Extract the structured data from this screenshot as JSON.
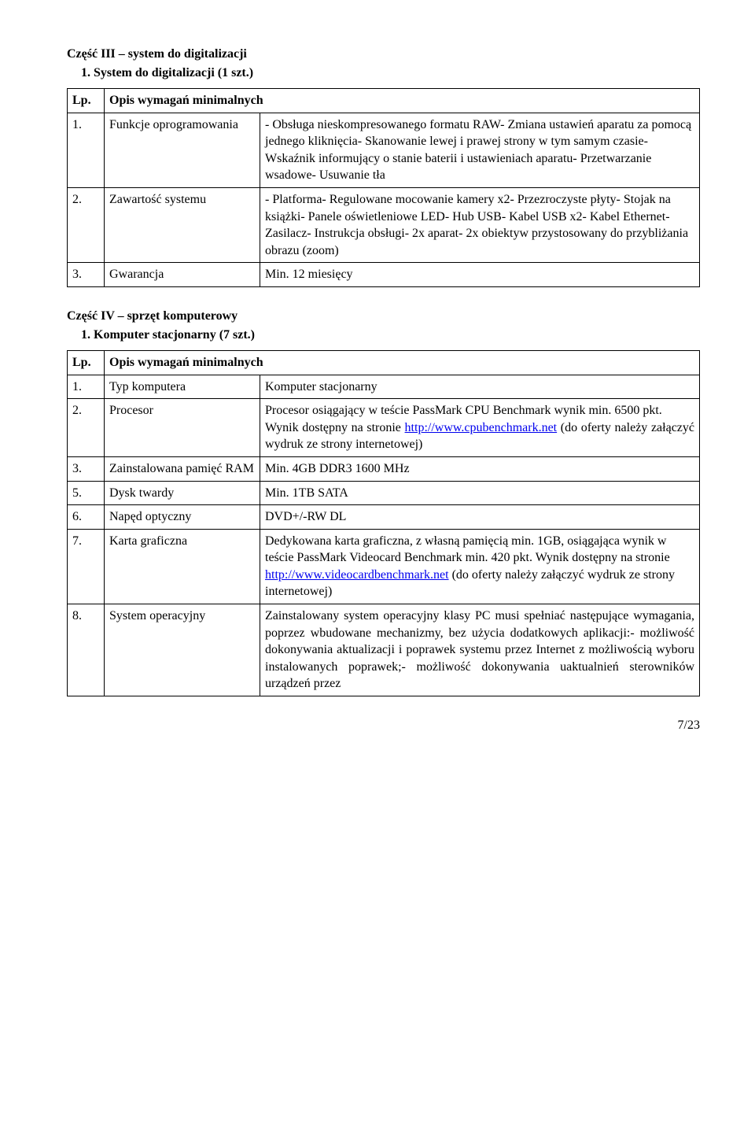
{
  "section3": {
    "title": "Część III – system do digitalizacji",
    "subtitle": "1. System do digitalizacji (1 szt.)",
    "header_lp": "Lp.",
    "header_desc": "Opis wymagań minimalnych",
    "rows": [
      {
        "lp": "1.",
        "name": "Funkcje oprogramowania",
        "lines": [
          "- Obsługa nieskompresowanego formatu RAW",
          "- Zmiana ustawień aparatu za pomocą jednego kliknięcia",
          "- Skanowanie lewej i prawej strony w tym samym czasie",
          "- Wskaźnik informujący o stanie baterii i ustawieniach aparatu",
          "- Przetwarzanie wsadowe",
          "- Usuwanie tła"
        ]
      },
      {
        "lp": "2.",
        "name": "Zawartość systemu",
        "lines": [
          "- Platforma",
          "- Regulowane mocowanie kamery x2",
          "- Przezroczyste płyty",
          "- Stojak na książki",
          "- Panele oświetleniowe LED",
          "- Hub USB",
          "- Kabel USB x2",
          "- Kabel Ethernet",
          "- Zasilacz",
          "- Instrukcja obsługi",
          "- 2x aparat",
          "- 2x obiektyw przystosowany do przybliżania obrazu (zoom)"
        ]
      },
      {
        "lp": "3.",
        "name": "Gwarancja",
        "lines": [
          "Min. 12 miesięcy"
        ]
      }
    ]
  },
  "section4": {
    "title": "Część IV – sprzęt komputerowy",
    "subtitle": "1. Komputer stacjonarny (7 szt.)",
    "header_lp": "Lp.",
    "header_desc": "Opis wymagań minimalnych",
    "row1": {
      "lp": "1.",
      "name": "Typ komputera",
      "desc": "Komputer stacjonarny"
    },
    "row2": {
      "lp": "2.",
      "name": "Procesor",
      "pre": "Procesor osiągający w teście PassMark CPU Benchmark wynik min. 6500 pkt.",
      "mid1": "Wynik dostępny na stronie ",
      "link": "http://www.cpubenchmark.net",
      "mid2": " (do oferty należy załączyć wydruk ze strony internetowej)"
    },
    "row3": {
      "lp": "3.",
      "name": "Zainstalowana pamięć RAM",
      "desc": "Min. 4GB DDR3 1600 MHz"
    },
    "row5": {
      "lp": "5.",
      "name": "Dysk twardy",
      "desc": "Min. 1TB SATA"
    },
    "row6": {
      "lp": "6.",
      "name": "Napęd optyczny",
      "desc": "DVD+/-RW DL"
    },
    "row7": {
      "lp": "7.",
      "name": "Karta graficzna",
      "pre": "Dedykowana karta graficzna, z własną pamięcią min. 1GB, osiągająca wynik w teście PassMark Videocard Benchmark min. 420 pkt. Wynik dostępny na stronie ",
      "link": "http://www.videocardbenchmark.net",
      "post": " (do oferty należy załączyć wydruk ze strony internetowej)"
    },
    "row8": {
      "lp": "8.",
      "name": "System operacyjny",
      "lines": [
        "Zainstalowany system operacyjny klasy PC musi spełniać następujące wymagania, poprzez wbudowane mechanizmy, bez użycia dodatkowych aplikacji:",
        "- możliwość dokonywania aktualizacji i poprawek systemu przez Internet z możliwością wyboru instalowanych poprawek;",
        "- możliwość dokonywania uaktualnień sterowników urządzeń przez"
      ]
    }
  },
  "footer": "7/23"
}
